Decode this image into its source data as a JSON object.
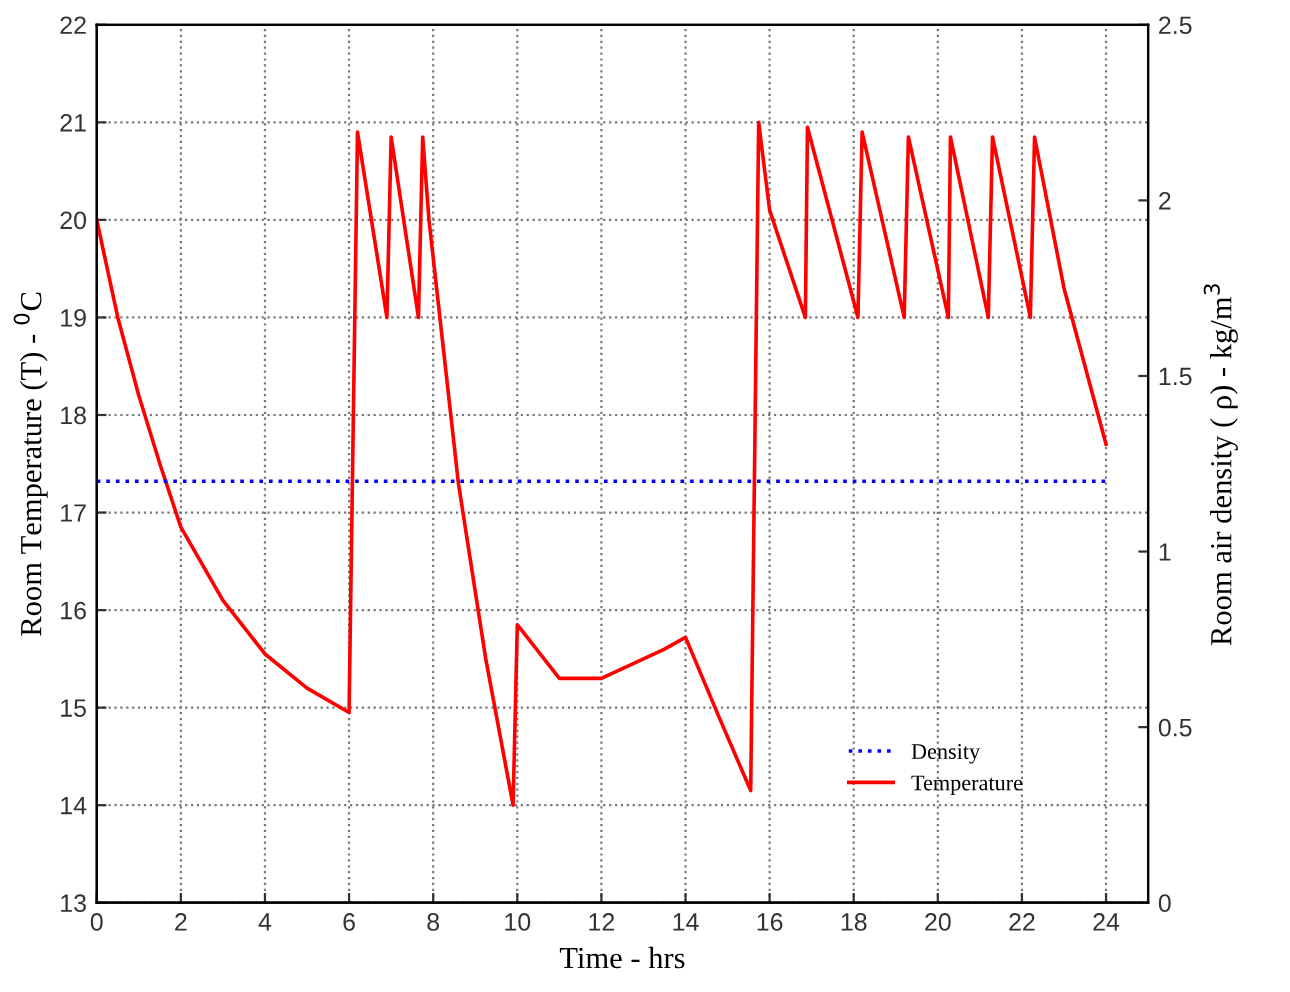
{
  "chart_data": {
    "type": "line",
    "xlabel": "Time - hrs",
    "ylabel": "Room Temperature (T) - $^{0}$C",
    "y2label": "Room air density ( ρ) - kg/m$^{3}$",
    "xlim": [
      0,
      25
    ],
    "xticks": [
      0,
      2,
      4,
      6,
      8,
      10,
      12,
      14,
      16,
      18,
      20,
      22,
      24
    ],
    "ylim": [
      13,
      22
    ],
    "yticks": [
      13,
      14,
      15,
      16,
      17,
      18,
      19,
      20,
      21,
      22
    ],
    "y2lim": [
      0,
      2.5
    ],
    "y2ticks": [
      0,
      0.5,
      1,
      1.5,
      2,
      2.5
    ],
    "grid": true,
    "legend": "bottom right",
    "series": [
      {
        "name": "Density",
        "color": "#0000ff",
        "axis": "y2",
        "line_style": "dotted",
        "x": [
          0,
          24
        ],
        "values": [
          1.2,
          1.2
        ]
      },
      {
        "name": "Temperature",
        "color": "#ff0000",
        "axis": "y",
        "line_style": "solid",
        "x": [
          0,
          0.5,
          1,
          1.5,
          2,
          3,
          4,
          5,
          6,
          6.2,
          6.9,
          7.0,
          7.65,
          7.75,
          7.9,
          8.6,
          9.25,
          9.9,
          10.0,
          11.0,
          12.0,
          13.0,
          13.5,
          14.0,
          14.8,
          15.55,
          15.74,
          16.0,
          16.85,
          16.9,
          18.1,
          18.2,
          19.2,
          19.3,
          20.25,
          20.3,
          21.2,
          21.3,
          22.2,
          22.3,
          23.0,
          24.0
        ],
        "values": [
          20.0,
          19.0,
          18.2,
          17.5,
          16.85,
          16.1,
          15.55,
          15.2,
          14.95,
          20.9,
          19.0,
          20.85,
          19.0,
          20.85,
          20.0,
          17.3,
          15.5,
          14.0,
          15.85,
          15.3,
          15.3,
          15.5,
          15.6,
          15.72,
          14.9,
          14.15,
          21.0,
          20.1,
          19.0,
          20.95,
          19.0,
          20.9,
          19.0,
          20.85,
          19.0,
          20.85,
          19.0,
          20.85,
          19.0,
          20.85,
          19.3,
          17.7
        ]
      }
    ]
  }
}
